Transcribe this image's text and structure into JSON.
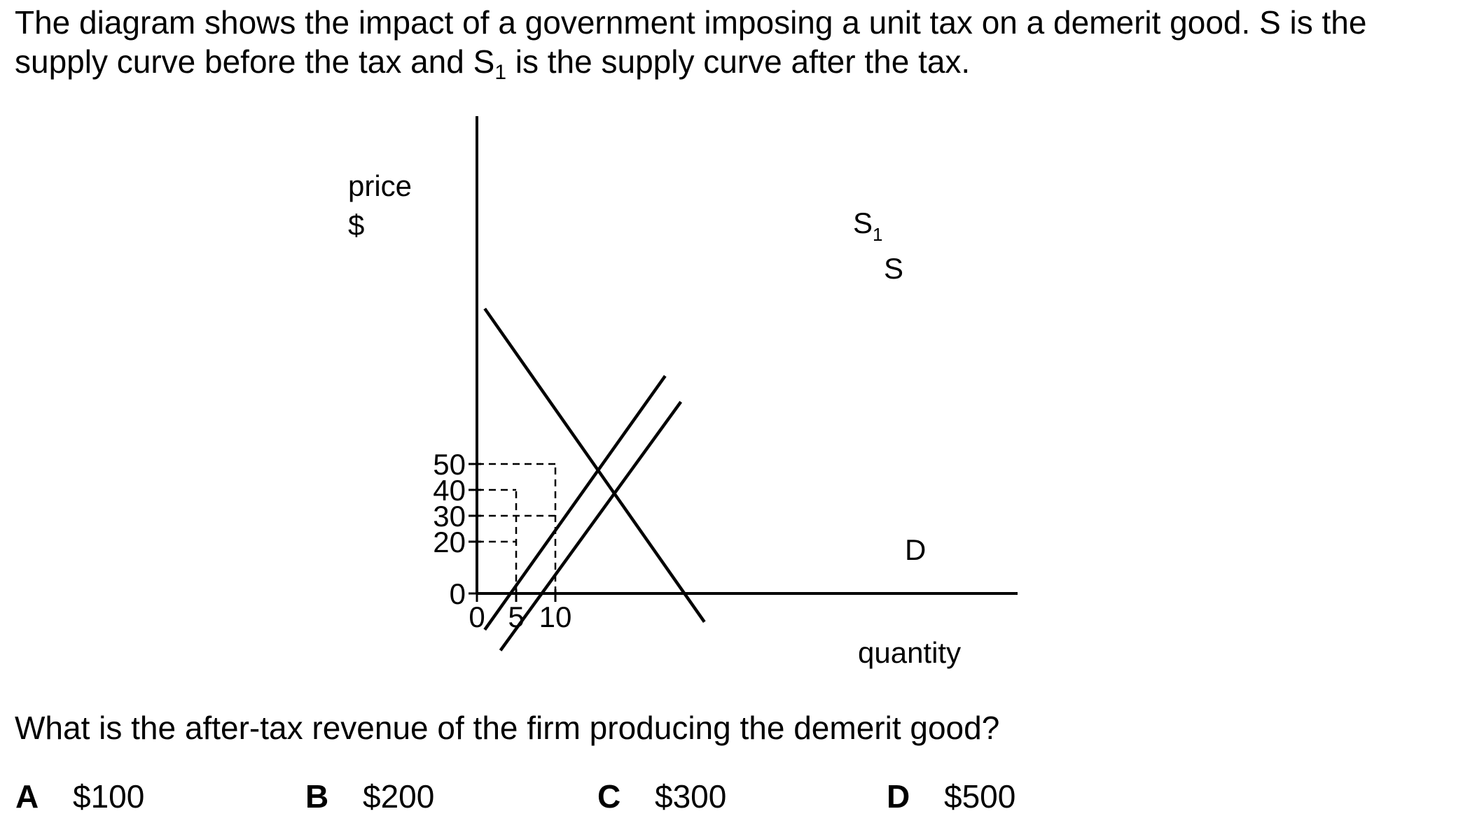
{
  "intro": {
    "line1": "The diagram shows the impact of a government imposing a unit tax on a demerit good. S is the",
    "line2_pre": "supply curve before the tax and S",
    "line2_sub": "1",
    "line2_post": " is the supply curve after the tax."
  },
  "chart_data": {
    "type": "line",
    "ylabel_line1": "price",
    "ylabel_line2": "$",
    "xlabel": "quantity",
    "y_ticks": [
      {
        "label": "50",
        "value": 50
      },
      {
        "label": "40",
        "value": 40
      },
      {
        "label": "30",
        "value": 30
      },
      {
        "label": "20",
        "value": 20
      },
      {
        "label": "0",
        "value": 0
      }
    ],
    "x_ticks": [
      {
        "label": "0",
        "value": 0
      },
      {
        "label": "5",
        "value": 5
      },
      {
        "label": "10",
        "value": 10
      }
    ],
    "series": [
      {
        "name": "D",
        "label": "D",
        "points": [
          [
            1,
            110
          ],
          [
            29,
            -11
          ]
        ]
      },
      {
        "name": "S1",
        "label": "S",
        "label_sub": "1",
        "points": [
          [
            1,
            -14
          ],
          [
            24,
            84
          ]
        ]
      },
      {
        "name": "S",
        "label": "S",
        "points": [
          [
            3,
            -22
          ],
          [
            26,
            74
          ]
        ]
      }
    ],
    "guides": [
      {
        "from": [
          0,
          50
        ],
        "to": [
          10,
          50
        ]
      },
      {
        "from": [
          0,
          40
        ],
        "to": [
          5,
          40
        ]
      },
      {
        "from": [
          0,
          30
        ],
        "to": [
          10,
          30
        ]
      },
      {
        "from": [
          0,
          20
        ],
        "to": [
          5,
          20
        ]
      },
      {
        "from": [
          5,
          0
        ],
        "to": [
          5,
          40
        ]
      },
      {
        "from": [
          10,
          0
        ],
        "to": [
          10,
          50
        ]
      }
    ]
  },
  "question": "What is the after-tax revenue of the firm producing the demerit good?",
  "options": [
    {
      "letter": "A",
      "text": "$100"
    },
    {
      "letter": "B",
      "text": "$200"
    },
    {
      "letter": "C",
      "text": "$300"
    },
    {
      "letter": "D",
      "text": "$500"
    }
  ]
}
